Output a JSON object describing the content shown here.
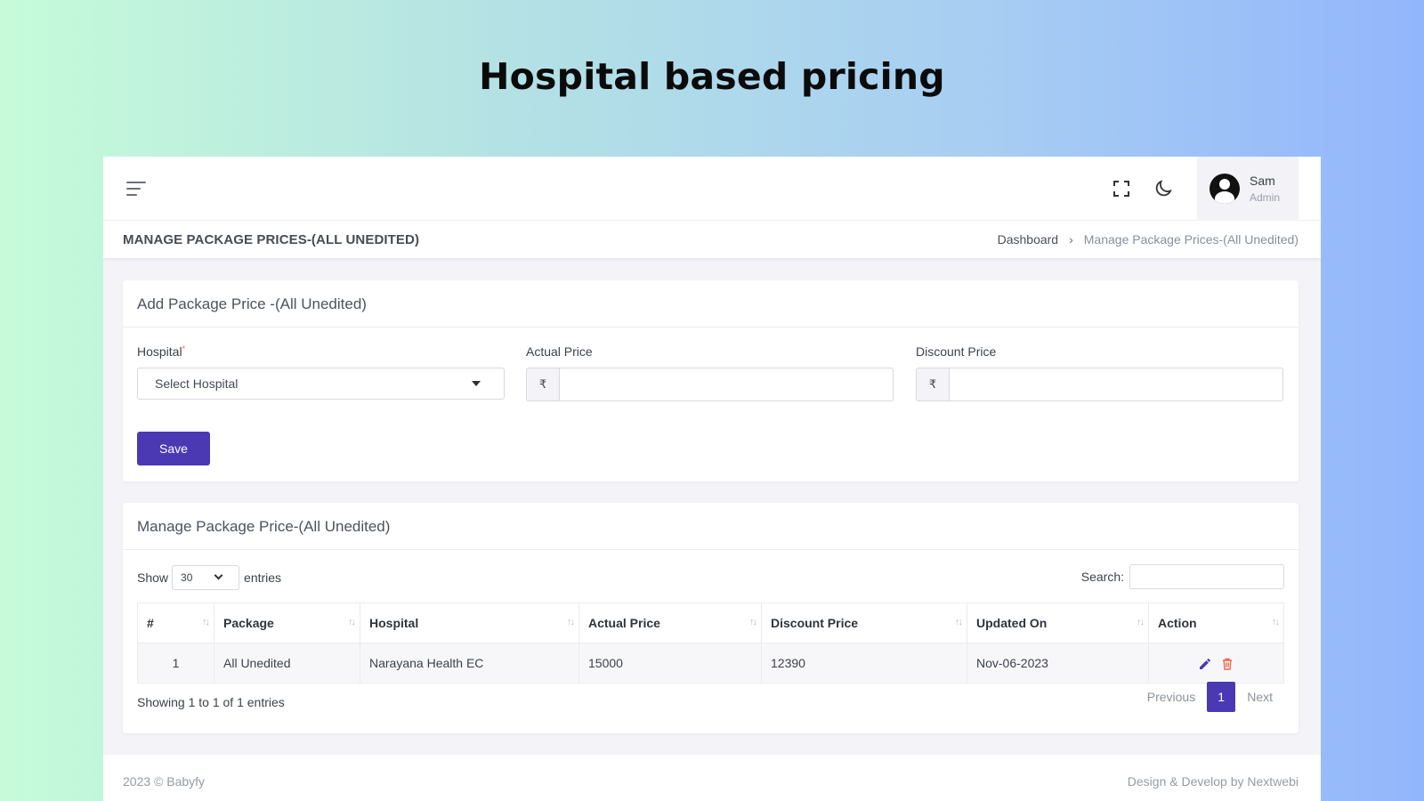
{
  "banner": {
    "title": "Hospital based pricing"
  },
  "topbar": {
    "user_name": "Sam",
    "user_role": "Admin",
    "icons": [
      "menu-icon",
      "fullscreen-icon",
      "moon-icon",
      "user-avatar-icon"
    ]
  },
  "page": {
    "title": "MANAGE PACKAGE PRICES-(ALL UNEDITED)",
    "breadcrumb": {
      "home": "Dashboard",
      "separator": "›",
      "current": "Manage Package Prices-(All Unedited)"
    }
  },
  "form": {
    "heading": "Add Package Price -(All Unedited)",
    "hospital_label": "Hospital",
    "required_mark": "*",
    "hospital_select": "Select Hospital",
    "actual_price_label": "Actual Price",
    "discount_price_label": "Discount Price",
    "currency_symbol": "₹",
    "actual_price_value": "",
    "discount_price_value": "",
    "save_label": "Save"
  },
  "table": {
    "heading": "Manage Package Price-(All Unedited)",
    "show_label": "Show",
    "entries_value": "30",
    "entries_label": "entries",
    "search_label": "Search:",
    "search_value": "",
    "columns": [
      "#",
      "Package",
      "Hospital",
      "Actual Price",
      "Discount Price",
      "Updated On",
      "Action"
    ],
    "rows": [
      {
        "num": "1",
        "package": "All Unedited",
        "hospital": "Narayana Health EC",
        "actual_price": "15000",
        "discount_price": "12390",
        "updated_on": "Nov-06-2023",
        "actions": [
          "edit-icon",
          "delete-icon"
        ]
      }
    ],
    "summary": "Showing 1 to 1 of 1 entries",
    "pagination": {
      "previous": "Previous",
      "current": "1",
      "next": "Next"
    }
  },
  "footer": {
    "left": "2023 © Babyfy",
    "right": "Design & Develop by Nextwebi"
  },
  "colors": {
    "primary": "#4b38b3",
    "delete": "#f06548",
    "required": "#f06548"
  }
}
